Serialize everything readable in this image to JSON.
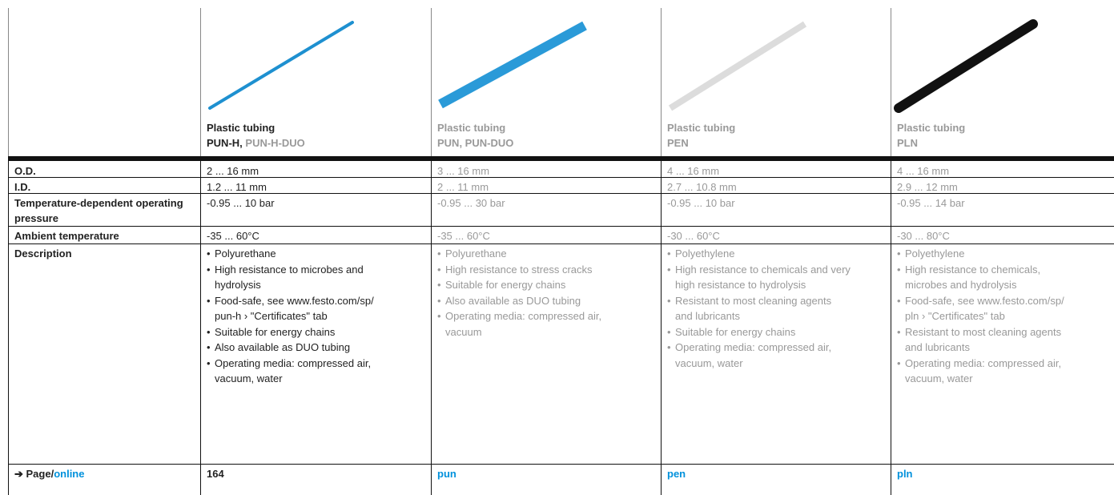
{
  "header": {
    "products": [
      {
        "name": "Plastic tubing",
        "type": "PUN-H,",
        "type_extra": "PUN-H-DUO"
      },
      {
        "name": "Plastic tubing",
        "type": "PUN, PUN-DUO"
      },
      {
        "name": "Plastic tubing",
        "type": "PEN"
      },
      {
        "name": "Plastic tubing",
        "type": "PLN"
      }
    ]
  },
  "table": {
    "rows": [
      {
        "label": "O.D.",
        "cells": [
          "2 ... 16 mm",
          "3 ... 16 mm",
          "4 ... 16 mm",
          "4 ... 16 mm"
        ]
      },
      {
        "label": "I.D.",
        "cells": [
          "1.2 ... 11 mm",
          "2 ... 11 mm",
          "2.7 ... 10.8 mm",
          "2.9 ... 12 mm"
        ]
      },
      {
        "label": "Temperature-dependent operating pressure",
        "cells": [
          "-0.95 ... 10 bar",
          "-0.95 ... 30 bar",
          "-0.95 ... 10 bar",
          "-0.95 ... 14 bar"
        ]
      },
      {
        "label": "Ambient temperature",
        "cells": [
          "-35 ... 60°C",
          "-35 ... 60°C",
          "-30 ... 60°C",
          "-30 ... 80°C"
        ]
      },
      {
        "label": "Description",
        "cells": [
          [
            "Polyurethane",
            "High resistance to microbes and hydrolysis",
            "Food-safe, see www.festo.com/sp/ pun-h › \"Certificates\" tab",
            "Suitable for energy chains",
            "Also available as DUO tubing",
            "Operating media: compressed air, vacuum, water"
          ],
          [
            "Polyurethane",
            "High resistance to stress cracks",
            "Suitable for energy chains",
            "Also available as DUO tubing",
            "Operating media: compressed air, vacuum"
          ],
          [
            "Polyethylene",
            "High resistance to chemicals and very high resistance to hydrolysis",
            "Resistant to most cleaning agents and lubricants",
            "Suitable for energy chains",
            "Operating media: compressed air, vacuum, water"
          ],
          [
            "Polyethylene",
            "High resistance to chemicals, microbes and hydrolysis",
            "Food-safe, see www.festo.com/sp/ pln › \"Certificates\" tab",
            "Resistant to most cleaning agents and lubricants",
            "Operating media: compressed air, vacuum, water"
          ]
        ]
      }
    ]
  },
  "footer": {
    "label_prefix": "➔ Page/",
    "label_link": "online",
    "cells": [
      "164",
      "pun",
      "pen",
      "pln"
    ]
  }
}
